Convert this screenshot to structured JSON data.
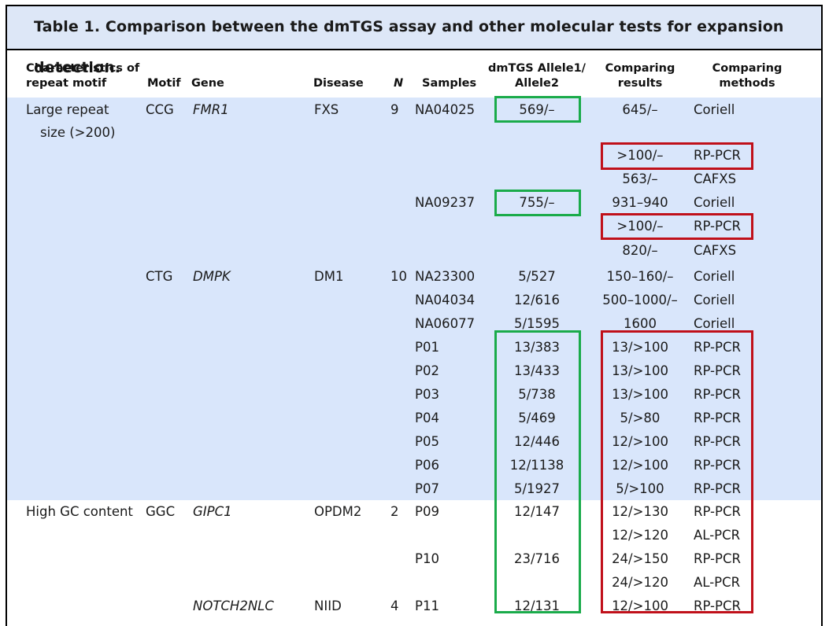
{
  "table": {
    "title": "Table 1.  Comparison between the dmTGS assay and other molecular tests for expansion detection.",
    "headers": {
      "characteristics_l1": "Characteristics of",
      "characteristics_l2": "repeat motif",
      "motif": "Motif",
      "gene": "Gene",
      "disease": "Disease",
      "n": "N",
      "samples": "Samples",
      "dmtgs_l1": "dmTGS Allele1/",
      "dmtgs_l2": "Allele2",
      "comparing_results_l1": "Comparing",
      "comparing_results_l2": "results",
      "comparing_methods_l1": "Comparing",
      "comparing_methods_l2": "methods"
    },
    "groups": [
      {
        "characteristic_l1": "Large repeat",
        "characteristic_l2": "size (>200)"
      },
      {
        "characteristic_l1": "High GC content"
      }
    ],
    "genes": [
      {
        "motif": "CCG",
        "gene": "FMR1",
        "disease": "FXS",
        "n": "9"
      },
      {
        "motif": "CTG",
        "gene": "DMPK",
        "disease": "DM1",
        "n": "10"
      },
      {
        "motif": "GGC",
        "gene": "GIPC1",
        "disease": "OPDM2",
        "n": "2"
      },
      {
        "motif": "",
        "gene": "NOTCH2NLC",
        "disease": "NIID",
        "n": "4"
      }
    ],
    "rows": [
      {
        "sample": "NA04025",
        "dmtgs": "569/–",
        "result": "645/–",
        "method": "Coriell"
      },
      {
        "sample": "",
        "dmtgs": "",
        "result": ">100/–",
        "method": "RP-PCR"
      },
      {
        "sample": "",
        "dmtgs": "",
        "result": "563/–",
        "method": "CAFXS"
      },
      {
        "sample": "NA09237",
        "dmtgs": "755/–",
        "result": "931–940",
        "method": "Coriell"
      },
      {
        "sample": "",
        "dmtgs": "",
        "result": ">100/–",
        "method": "RP-PCR"
      },
      {
        "sample": "",
        "dmtgs": "",
        "result": "820/–",
        "method": "CAFXS"
      },
      {
        "sample": "NA23300",
        "dmtgs": "5/527",
        "result": "150–160/–",
        "method": "Coriell"
      },
      {
        "sample": "NA04034",
        "dmtgs": "12/616",
        "result": "500–1000/–",
        "method": "Coriell"
      },
      {
        "sample": "NA06077",
        "dmtgs": "5/1595",
        "result": "1600",
        "method": "Coriell"
      },
      {
        "sample": "P01",
        "dmtgs": "13/383",
        "result": "13/>100",
        "method": "RP-PCR"
      },
      {
        "sample": "P02",
        "dmtgs": "13/433",
        "result": "13/>100",
        "method": "RP-PCR"
      },
      {
        "sample": "P03",
        "dmtgs": "5/738",
        "result": "13/>100",
        "method": "RP-PCR"
      },
      {
        "sample": "P04",
        "dmtgs": "5/469",
        "result": "5/>80",
        "method": "RP-PCR"
      },
      {
        "sample": "P05",
        "dmtgs": "12/446",
        "result": "12/>100",
        "method": "RP-PCR"
      },
      {
        "sample": "P06",
        "dmtgs": "12/1138",
        "result": "12/>100",
        "method": "RP-PCR"
      },
      {
        "sample": "P07",
        "dmtgs": "5/1927",
        "result": "5/>100",
        "method": "RP-PCR"
      },
      {
        "sample": "P09",
        "dmtgs": "12/147",
        "result": "12/>130",
        "method": "RP-PCR"
      },
      {
        "sample": "",
        "dmtgs": "",
        "result": "12/>120",
        "method": "AL-PCR"
      },
      {
        "sample": "P10",
        "dmtgs": "23/716",
        "result": "24/>150",
        "method": "RP-PCR"
      },
      {
        "sample": "",
        "dmtgs": "",
        "result": "24/>120",
        "method": "AL-PCR"
      },
      {
        "sample": "P11",
        "dmtgs": "12/131",
        "result": "12/>100",
        "method": "RP-PCR"
      }
    ]
  },
  "highlight_colors": {
    "green": "#1aab4a",
    "red": "#c0101a",
    "band": "#d9e6fb"
  }
}
